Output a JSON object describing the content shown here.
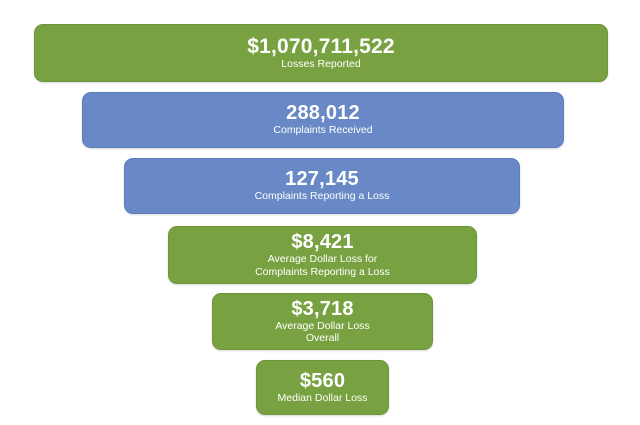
{
  "funnel": {
    "tiers": [
      {
        "value": "$1,070,711,522",
        "label": "Losses Reported",
        "color": "#78a241"
      },
      {
        "value": "288,012",
        "label": "Complaints Received",
        "color": "#6889c6"
      },
      {
        "value": "127,145",
        "label": "Complaints Reporting a Loss",
        "color": "#6889c6"
      },
      {
        "value": "$8,421",
        "label": "Average Dollar Loss for\nComplaints Reporting a Loss",
        "color": "#78a241"
      },
      {
        "value": "$3,718",
        "label": "Average Dollar Loss\nOverall",
        "color": "#78a241"
      },
      {
        "value": "$560",
        "label": "Median Dollar Loss",
        "color": "#78a241"
      }
    ]
  }
}
